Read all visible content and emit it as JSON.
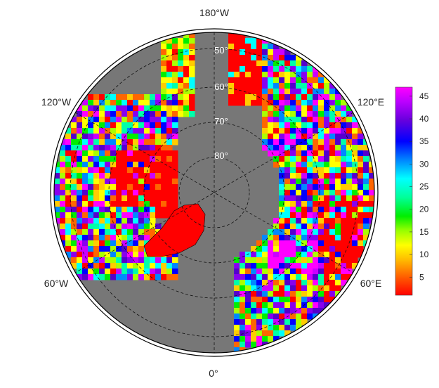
{
  "map": {
    "projection": "north-polar-stereographic",
    "center": "North Pole",
    "ocean_color": "#777777",
    "outline_color": "#000000",
    "graticule_style": "dashed"
  },
  "longitude_labels": [
    {
      "name": "lon-180w",
      "text": "180°W"
    },
    {
      "name": "lon-120w",
      "text": "120°W"
    },
    {
      "name": "lon-60w",
      "text": "60°W"
    },
    {
      "name": "lon-0",
      "text": "0°"
    },
    {
      "name": "lon-60e",
      "text": "60°E"
    },
    {
      "name": "lon-120e",
      "text": "120°E"
    }
  ],
  "latitude_labels": [
    {
      "name": "lat-50",
      "text": "50°"
    },
    {
      "name": "lat-60",
      "text": "60°"
    },
    {
      "name": "lat-70",
      "text": "70°"
    },
    {
      "name": "lat-80",
      "text": "80°"
    }
  ],
  "colorbar": {
    "min": 1,
    "max": 47,
    "ticks": [
      "5",
      "10",
      "15",
      "20",
      "25",
      "30",
      "35",
      "40",
      "45"
    ],
    "tick_values": [
      5,
      10,
      15,
      20,
      25,
      30,
      35,
      40,
      45
    ],
    "colors": [
      "#ff0000",
      "#ff6600",
      "#ffcc00",
      "#ffff00",
      "#aaff00",
      "#00ee00",
      "#00ffaa",
      "#00ffff",
      "#0088ff",
      "#0000ff",
      "#5500cc",
      "#8800ee",
      "#cc00ff",
      "#ff00ff"
    ]
  }
}
